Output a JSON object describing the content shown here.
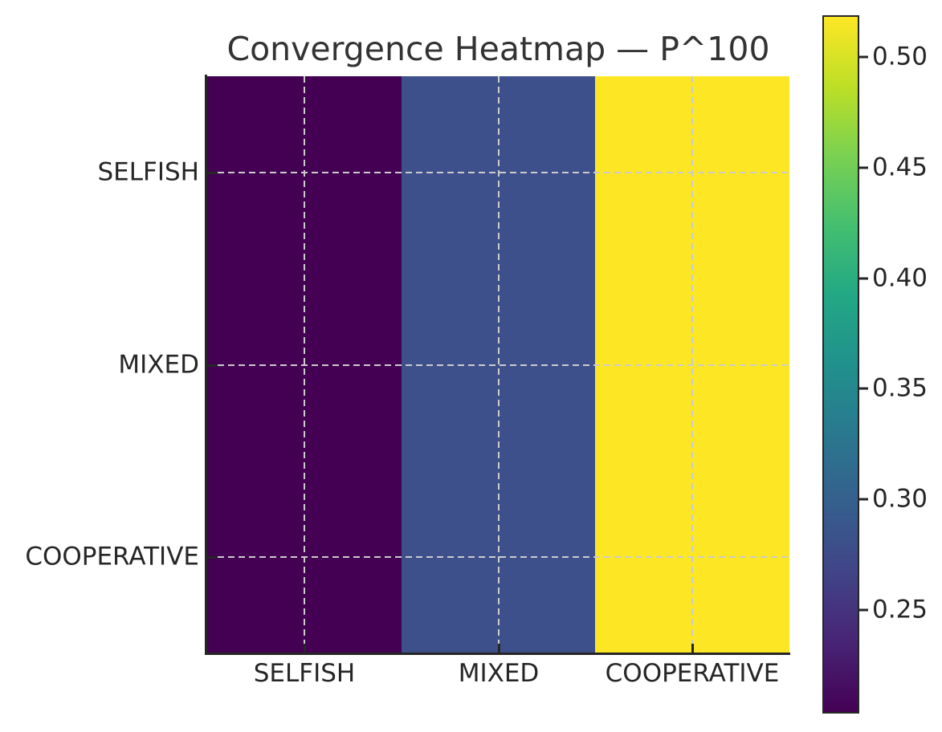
{
  "chart_data": {
    "type": "heatmap",
    "title": "Convergence Heatmap — P^100",
    "x_categories": [
      "SELFISH",
      "MIXED",
      "COOPERATIVE"
    ],
    "y_categories": [
      "SELFISH",
      "MIXED",
      "COOPERATIVE"
    ],
    "matrix": [
      [
        0.204,
        0.278,
        0.518
      ],
      [
        0.204,
        0.278,
        0.518
      ],
      [
        0.204,
        0.278,
        0.518
      ]
    ],
    "column_colors": [
      "#440154",
      "#3e508b",
      "#fde725"
    ],
    "colormap": "viridis",
    "vmin": 0.203,
    "vmax": 0.519,
    "grid": true,
    "gridline_style": "dashed",
    "colorbar": {
      "position": "right",
      "tick_values": [
        0.5,
        0.45,
        0.4,
        0.35,
        0.3,
        0.25
      ],
      "tick_labels": [
        "0.50",
        "0.45",
        "0.40",
        "0.35",
        "0.30",
        "0.25"
      ]
    }
  },
  "colors": {
    "background": "#ffffff",
    "gridline": "#cbcbcb",
    "spine": "#262626",
    "tick_text": "#262626",
    "title_text": "#333333",
    "cell_low": "#440154",
    "cell_mid": "#3e508b",
    "cell_high": "#fde725"
  }
}
